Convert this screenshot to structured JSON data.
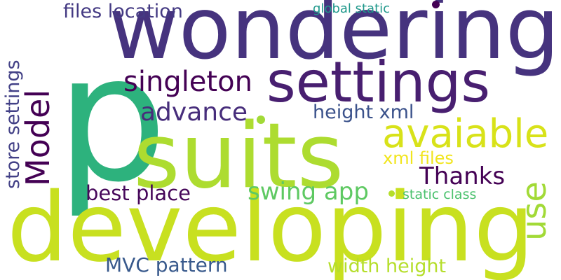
{
  "words": [
    {
      "text": "p",
      "color": "#2db27d"
    },
    {
      "text": "wondering",
      "color": "#46337e"
    },
    {
      "text": "suits",
      "color": "#addc30"
    },
    {
      "text": "developing",
      "color": "#c8e020"
    },
    {
      "text": "settings",
      "color": "#481f70"
    },
    {
      "text": "avaiable",
      "color": "#d8e219"
    },
    {
      "text": "Model",
      "color": "#440154"
    },
    {
      "text": "use",
      "color": "#a2da37"
    },
    {
      "text": "singleton",
      "color": "#440154"
    },
    {
      "text": "advance",
      "color": "#472d7b"
    },
    {
      "text": "Thanks",
      "color": "#440154"
    },
    {
      "text": "swing app",
      "color": "#5ec962"
    },
    {
      "text": "store settings",
      "color": "#424086"
    },
    {
      "text": "files location",
      "color": "#443a83"
    },
    {
      "text": "best place",
      "color": "#46075a"
    },
    {
      "text": "height xml",
      "color": "#3b528b"
    },
    {
      "text": "MVC pattern",
      "color": "#38598c"
    },
    {
      "text": "width height",
      "color": "#b5de2b"
    },
    {
      "text": "xml files",
      "color": "#f1e51d"
    },
    {
      "text": "global static",
      "color": "#1f988b"
    },
    {
      "text": "static class",
      "color": "#4ac16d"
    }
  ],
  "dots": [
    {
      "color": "#440154"
    },
    {
      "color": "#a2da37"
    },
    {
      "color": "#b5de2b"
    }
  ]
}
